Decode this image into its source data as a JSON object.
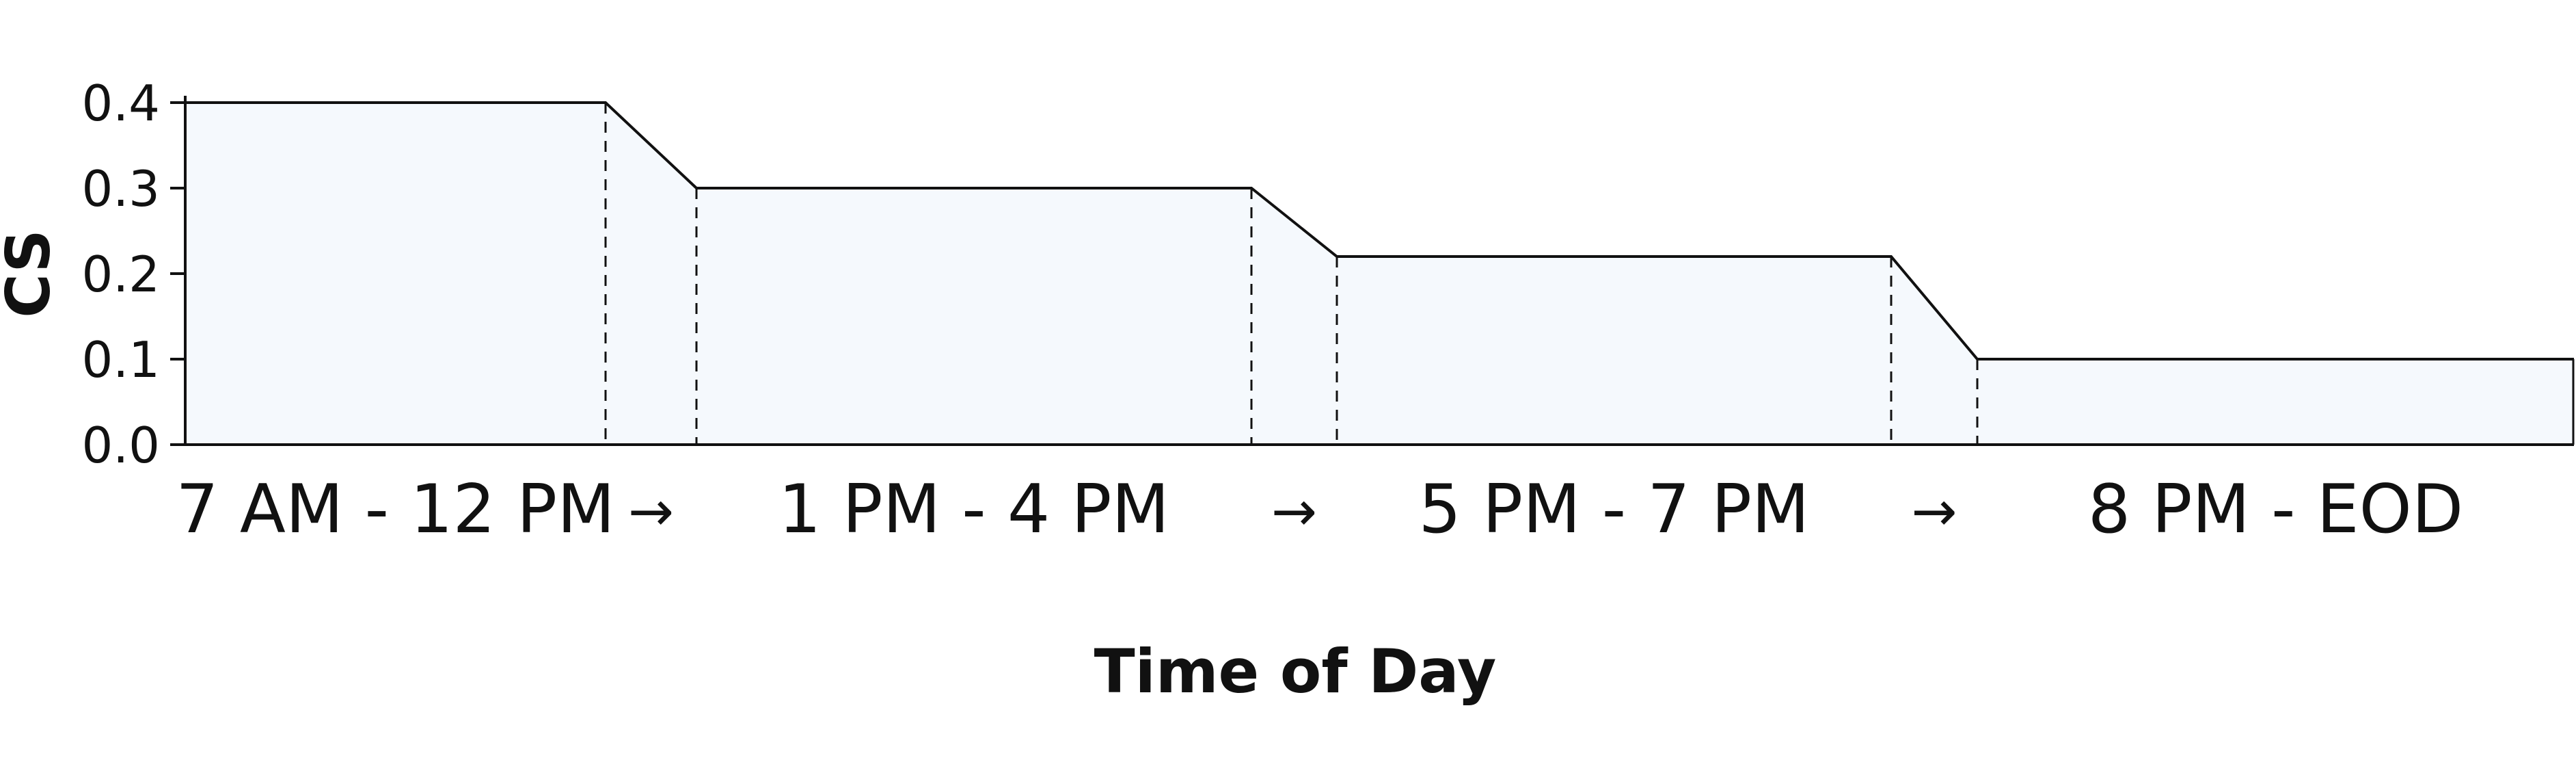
{
  "chart_data": {
    "type": "area",
    "title": "",
    "xlabel": "Time of Day",
    "ylabel": "CS",
    "ylim": [
      0.0,
      0.4
    ],
    "yticks": [
      "0.0",
      "0.1",
      "0.2",
      "0.3",
      "0.4"
    ],
    "categories": [
      "7 AM - 12 PM",
      "1 PM - 4 PM",
      "5 PM - 7 PM",
      "8 PM - EOD"
    ],
    "transition_label": "→",
    "values": [
      0.4,
      0.3,
      0.22,
      0.1
    ],
    "grid": false,
    "legend": "none",
    "colors": {
      "fill": "#f5f9fd",
      "line": "#111111",
      "divider": "#111111"
    }
  }
}
